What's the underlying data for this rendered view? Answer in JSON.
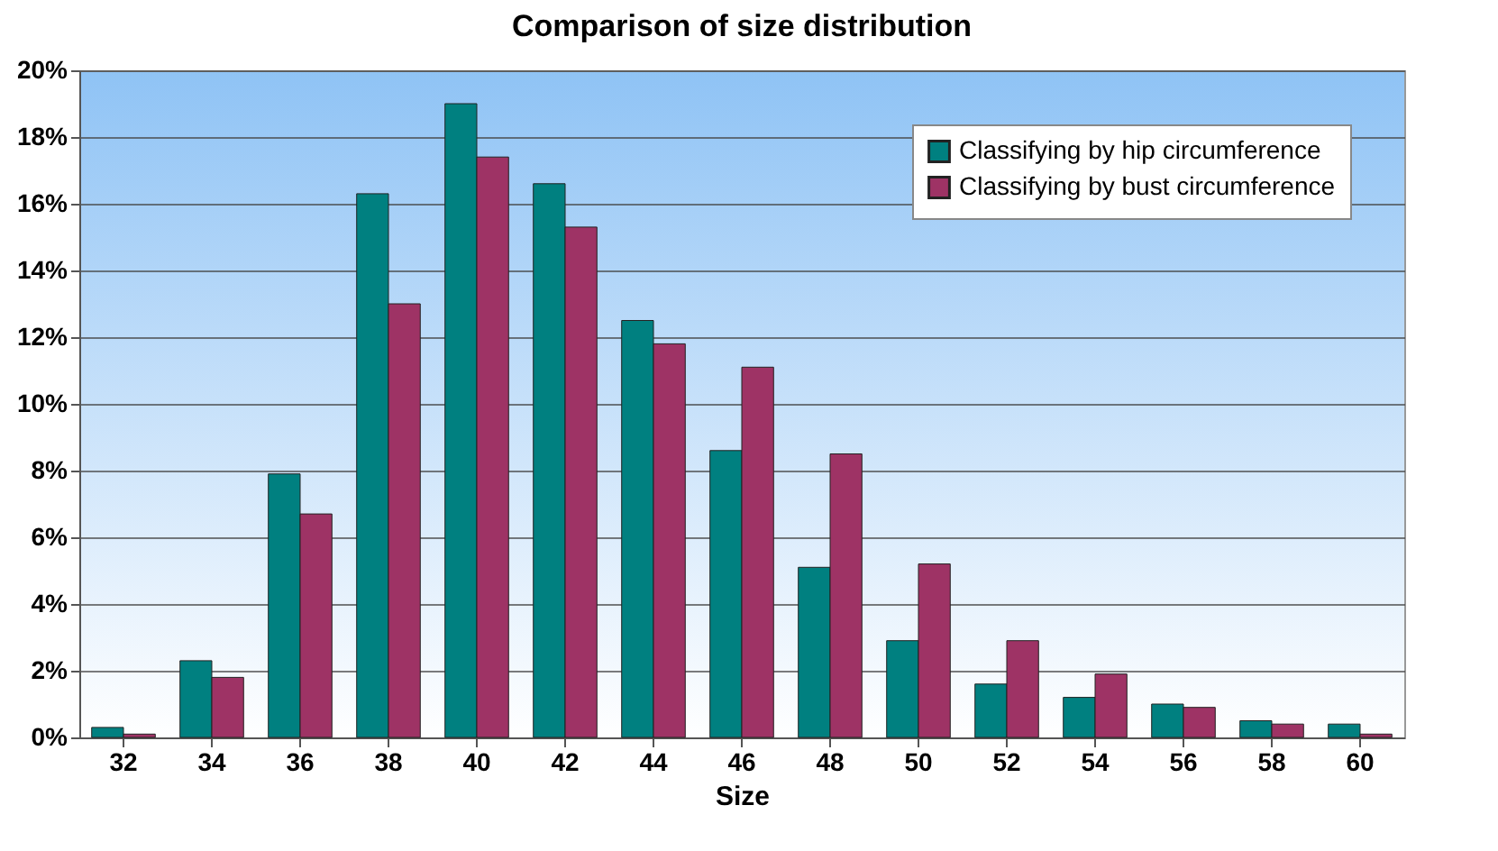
{
  "chart_data": {
    "type": "bar",
    "title": "Comparison of size distribution",
    "xlabel": "Size",
    "categories": [
      "32",
      "34",
      "36",
      "38",
      "40",
      "42",
      "44",
      "46",
      "48",
      "50",
      "52",
      "54",
      "56",
      "58",
      "60"
    ],
    "series": [
      {
        "name": "Classifying by hip circumference",
        "color": "#008080",
        "values": [
          0.3,
          2.3,
          7.9,
          16.3,
          19.0,
          16.6,
          12.5,
          8.6,
          5.1,
          2.9,
          1.6,
          1.2,
          1.0,
          0.5,
          0.4
        ]
      },
      {
        "name": "Classifying by bust circumference",
        "color": "#9e3365",
        "values": [
          0.1,
          1.8,
          6.7,
          13.0,
          17.4,
          15.3,
          11.8,
          11.1,
          8.5,
          5.2,
          2.9,
          1.9,
          0.9,
          0.4,
          0.1
        ]
      }
    ],
    "ylim": [
      0,
      20
    ],
    "yticks": [
      {
        "value": 0,
        "label": "0%"
      },
      {
        "value": 2,
        "label": "2%"
      },
      {
        "value": 4,
        "label": "4%"
      },
      {
        "value": 6,
        "label": "6%"
      },
      {
        "value": 8,
        "label": "8%"
      },
      {
        "value": 10,
        "label": "10%"
      },
      {
        "value": 12,
        "label": "12%"
      },
      {
        "value": 14,
        "label": "14%"
      },
      {
        "value": 16,
        "label": "16%"
      },
      {
        "value": 18,
        "label": "18%"
      },
      {
        "value": 20,
        "label": "20%"
      }
    ],
    "grid": "y",
    "legend": "top right"
  }
}
